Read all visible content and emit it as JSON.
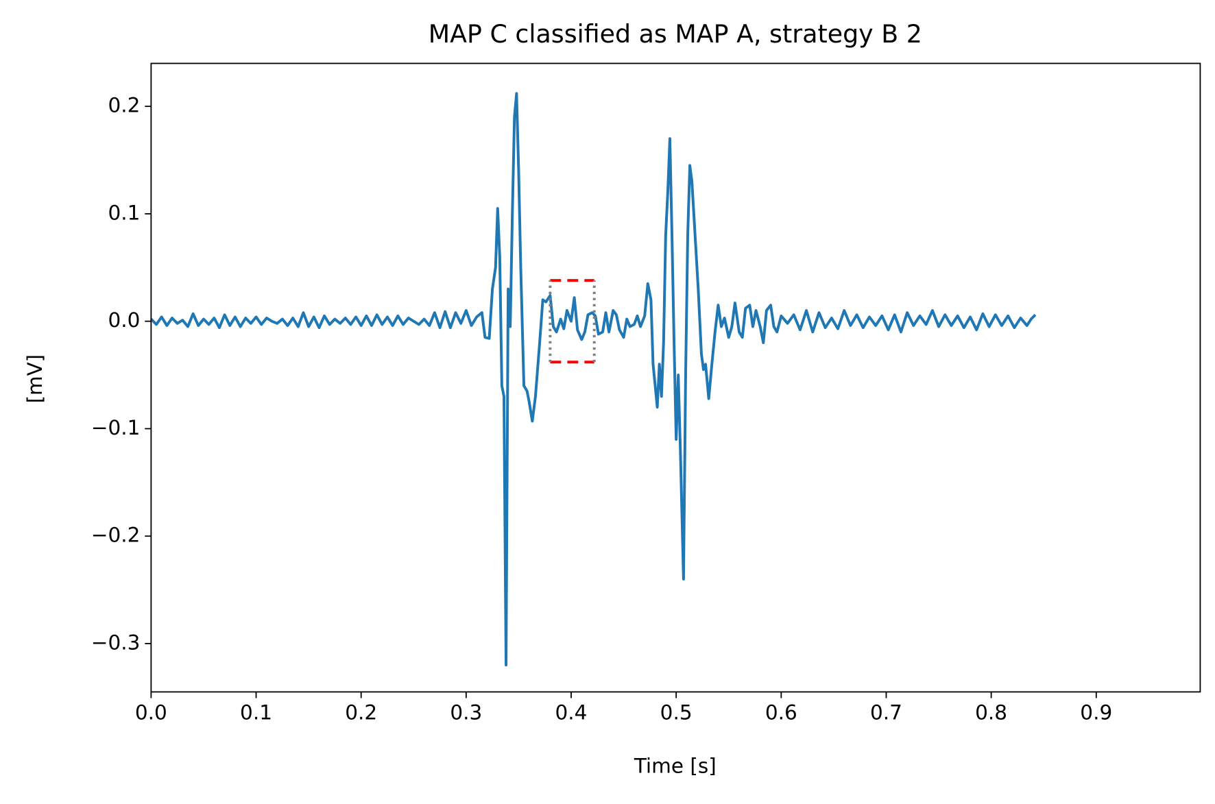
{
  "chart_data": {
    "type": "line",
    "title": "MAP C classified as MAP A, strategy B 2",
    "xlabel": "Time [s]",
    "ylabel": "[mV]",
    "xlim": [
      0,
      0.999
    ],
    "ylim": [
      -0.345,
      0.24
    ],
    "xticks": [
      {
        "value": 0,
        "label": "0.0"
      },
      0.1,
      0.2,
      0.3,
      0.4,
      0.5,
      0.6,
      0.7,
      0.8,
      0.9
    ],
    "yticks": [
      {
        "value": -0.3,
        "label": "−0.3"
      },
      {
        "value": -0.2,
        "label": "−0.2"
      },
      {
        "value": -0.1,
        "label": "−0.1"
      },
      {
        "value": 0,
        "label": "0.0"
      },
      0.1,
      0.2
    ],
    "window": {
      "x": [
        0.38,
        0.422
      ],
      "y": [
        -0.038,
        0.038
      ],
      "color": "#ff0000",
      "edge_color": "#808080"
    },
    "series": [
      {
        "color": "#1f77b4",
        "x": [
          0,
          0.005,
          0.01,
          0.015,
          0.02,
          0.025,
          0.03,
          0.035,
          0.04,
          0.045,
          0.05,
          0.055,
          0.06,
          0.065,
          0.07,
          0.075,
          0.08,
          0.085,
          0.09,
          0.095,
          0.1,
          0.105,
          0.11,
          0.115,
          0.12,
          0.125,
          0.13,
          0.135,
          0.14,
          0.145,
          0.15,
          0.155,
          0.16,
          0.165,
          0.17,
          0.175,
          0.18,
          0.185,
          0.19,
          0.195,
          0.2,
          0.205,
          0.21,
          0.215,
          0.22,
          0.225,
          0.23,
          0.235,
          0.24,
          0.245,
          0.25,
          0.255,
          0.26,
          0.265,
          0.27,
          0.275,
          0.28,
          0.285,
          0.29,
          0.295,
          0.3,
          0.305,
          0.31,
          0.315,
          0.318,
          0.322,
          0.325,
          0.328,
          0.33,
          0.332,
          0.334,
          0.336,
          0.338,
          0.34,
          0.342,
          0.344,
          0.346,
          0.348,
          0.35,
          0.352,
          0.355,
          0.358,
          0.36,
          0.363,
          0.366,
          0.37,
          0.373,
          0.376,
          0.38,
          0.383,
          0.386,
          0.39,
          0.393,
          0.396,
          0.4,
          0.403,
          0.406,
          0.41,
          0.413,
          0.416,
          0.42,
          0.423,
          0.426,
          0.43,
          0.433,
          0.436,
          0.44,
          0.443,
          0.446,
          0.45,
          0.453,
          0.456,
          0.46,
          0.463,
          0.466,
          0.47,
          0.473,
          0.476,
          0.478,
          0.48,
          0.482,
          0.484,
          0.486,
          0.488,
          0.49,
          0.492,
          0.494,
          0.496,
          0.498,
          0.5,
          0.502,
          0.504,
          0.507,
          0.509,
          0.511,
          0.513,
          0.515,
          0.518,
          0.521,
          0.524,
          0.526,
          0.528,
          0.531,
          0.534,
          0.537,
          0.54,
          0.543,
          0.546,
          0.55,
          0.553,
          0.556,
          0.56,
          0.563,
          0.566,
          0.57,
          0.573,
          0.576,
          0.58,
          0.583,
          0.586,
          0.59,
          0.593,
          0.596,
          0.6,
          0.606,
          0.612,
          0.618,
          0.624,
          0.63,
          0.636,
          0.642,
          0.648,
          0.654,
          0.66,
          0.666,
          0.672,
          0.678,
          0.684,
          0.69,
          0.696,
          0.702,
          0.708,
          0.714,
          0.72,
          0.726,
          0.732,
          0.738,
          0.744,
          0.75,
          0.756,
          0.762,
          0.768,
          0.774,
          0.78,
          0.786,
          0.792,
          0.798,
          0.804,
          0.81,
          0.816,
          0.822,
          0.828,
          0.834,
          0.838,
          0.842
        ],
        "values": [
          0.002,
          -0.003,
          0.004,
          -0.004,
          0.003,
          -0.002,
          0.001,
          -0.005,
          0.007,
          -0.004,
          0.002,
          -0.003,
          0.003,
          -0.006,
          0.006,
          -0.004,
          0.004,
          -0.005,
          0.003,
          -0.002,
          0.004,
          -0.003,
          0.003,
          0,
          -0.002,
          0.002,
          -0.004,
          0.003,
          -0.005,
          0.008,
          -0.005,
          0.004,
          -0.006,
          0.005,
          -0.003,
          0.002,
          -0.002,
          0.003,
          -0.003,
          0.004,
          -0.004,
          0.005,
          -0.004,
          0.006,
          -0.003,
          0.004,
          -0.004,
          0.005,
          -0.003,
          0.003,
          0,
          -0.003,
          0.002,
          -0.004,
          0.008,
          -0.006,
          0.009,
          -0.006,
          0.008,
          -0.002,
          0.01,
          -0.004,
          0.004,
          0.008,
          -0.015,
          -0.016,
          0.03,
          0.05,
          0.105,
          0.06,
          -0.06,
          -0.07,
          -0.32,
          0.03,
          -0.005,
          0.1,
          0.19,
          0.212,
          0.14,
          0.05,
          -0.06,
          -0.065,
          -0.075,
          -0.093,
          -0.07,
          -0.02,
          0.02,
          0.018,
          0.024,
          -0.005,
          -0.01,
          0.002,
          -0.007,
          0.01,
          0,
          0.022,
          -0.008,
          -0.017,
          -0.01,
          0.006,
          0.008,
          0.005,
          -0.012,
          -0.01,
          0.008,
          -0.01,
          0.01,
          0.006,
          -0.008,
          -0.015,
          0.002,
          -0.005,
          -0.003,
          0.005,
          -0.005,
          0.005,
          0.035,
          0.02,
          -0.04,
          -0.06,
          -0.08,
          -0.04,
          -0.07,
          -0.02,
          0.08,
          0.12,
          0.17,
          0.08,
          -0.02,
          -0.11,
          -0.05,
          -0.12,
          -0.24,
          -0.05,
          0.08,
          0.145,
          0.13,
          0.08,
          0.03,
          -0.03,
          -0.045,
          -0.04,
          -0.072,
          -0.04,
          -0.01,
          0.015,
          -0.005,
          0.003,
          -0.015,
          -0.005,
          0.017,
          -0.01,
          -0.015,
          0.012,
          0.015,
          -0.005,
          0.01,
          -0.005,
          -0.02,
          0.01,
          0.015,
          -0.005,
          -0.01,
          0.005,
          -0.002,
          0.006,
          -0.008,
          0.01,
          -0.01,
          0.008,
          -0.006,
          0.003,
          -0.007,
          0.01,
          -0.004,
          0.006,
          -0.006,
          0.004,
          -0.004,
          0.005,
          -0.008,
          0.006,
          -0.01,
          0.008,
          -0.004,
          0.005,
          -0.003,
          0.01,
          -0.005,
          0.006,
          -0.004,
          0.005,
          -0.006,
          0.004,
          -0.008,
          0.007,
          -0.005,
          0.006,
          -0.004,
          0.005,
          -0.006,
          0.003,
          -0.004,
          0.002,
          0.006
        ]
      }
    ]
  }
}
